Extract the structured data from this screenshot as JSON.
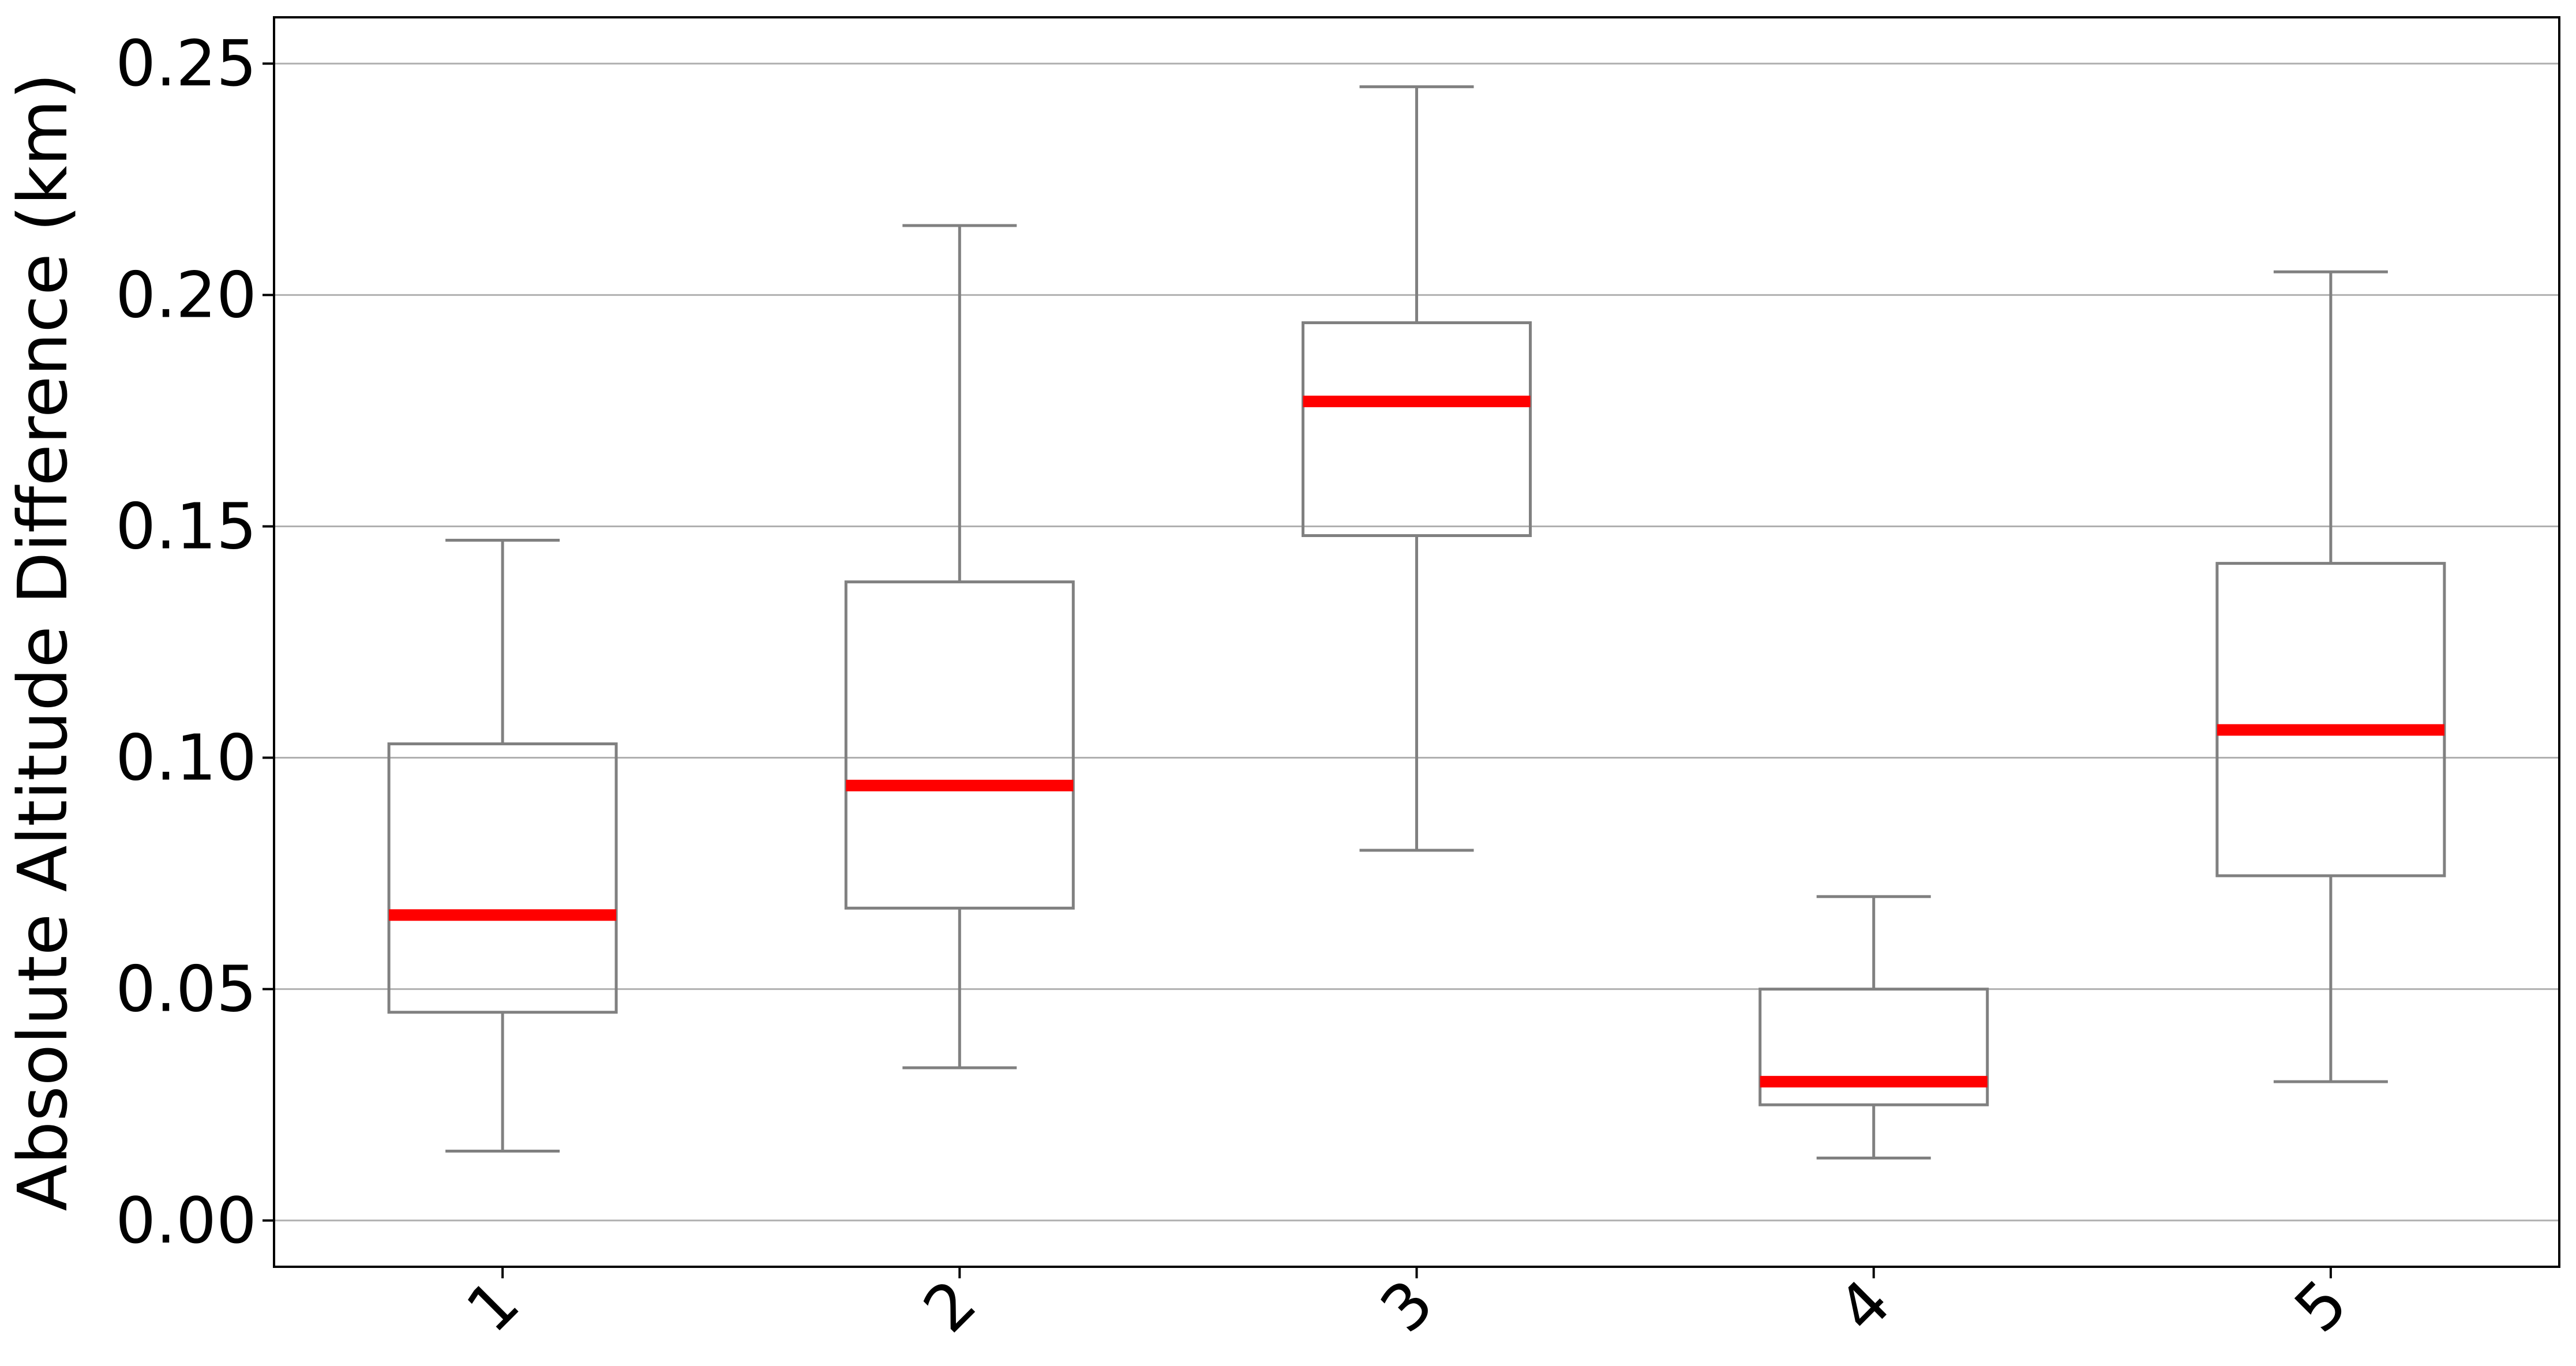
{
  "chart_data": {
    "type": "box",
    "title": "",
    "xlabel": "",
    "ylabel": "Absolute Altitude Difference (km)",
    "ylim": [
      -0.01,
      0.26
    ],
    "yticks": [
      0.0,
      0.05,
      0.1,
      0.15,
      0.2,
      0.25
    ],
    "ytick_labels": [
      "0.00",
      "0.05",
      "0.10",
      "0.15",
      "0.20",
      "0.25"
    ],
    "grid": "y",
    "categories": [
      "1",
      "2",
      "3",
      "4",
      "5"
    ],
    "boxes": [
      {
        "whisker_low": 0.015,
        "q1": 0.045,
        "median": 0.066,
        "q3": 0.103,
        "whisker_high": 0.147
      },
      {
        "whisker_low": 0.033,
        "q1": 0.0675,
        "median": 0.094,
        "q3": 0.138,
        "whisker_high": 0.215
      },
      {
        "whisker_low": 0.08,
        "q1": 0.148,
        "median": 0.177,
        "q3": 0.194,
        "whisker_high": 0.245
      },
      {
        "whisker_low": 0.0135,
        "q1": 0.025,
        "median": 0.03,
        "q3": 0.05,
        "whisker_high": 0.07
      },
      {
        "whisker_low": 0.03,
        "q1": 0.0745,
        "median": 0.106,
        "q3": 0.142,
        "whisker_high": 0.205
      }
    ],
    "colors": {
      "box": "#808080",
      "median": "#ff0000",
      "grid": "#b0b0b0",
      "axes": "#000000"
    }
  }
}
